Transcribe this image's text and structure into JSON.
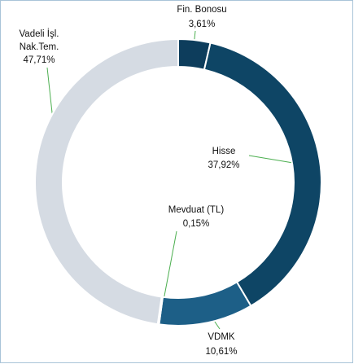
{
  "chart_data": {
    "type": "donut",
    "categories": [
      "Fin. Bonosu",
      "Hisse",
      "VDMK",
      "Mevduat (TL)",
      "Vadeli İşl. Nak.Tem."
    ],
    "values": [
      3.61,
      37.92,
      10.61,
      0.15,
      47.71
    ],
    "value_labels": [
      "3,61%",
      "37,92%",
      "10,61%",
      "0,15%",
      "47,71%"
    ],
    "colors": [
      "#0d3d5c",
      "#0e4565",
      "#1d5f87",
      "#2a6c93",
      "#d5dbe3"
    ]
  }
}
